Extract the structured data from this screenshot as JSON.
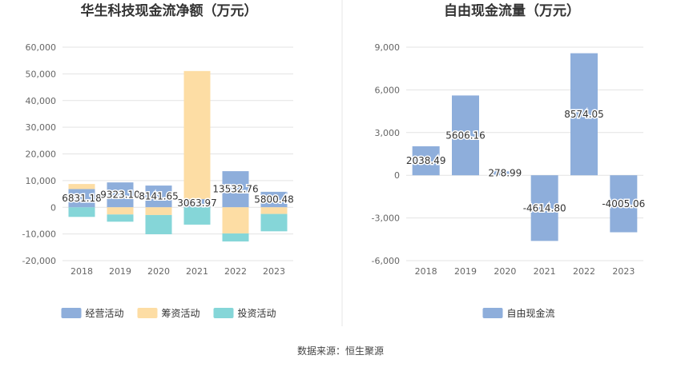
{
  "source_text": "数据来源：恒生聚源",
  "chart_data": [
    {
      "type": "bar",
      "title": "华生科技现金流净额（万元）",
      "categories": [
        "2018",
        "2019",
        "2020",
        "2021",
        "2022",
        "2023"
      ],
      "ylim": [
        -20000,
        60000
      ],
      "yticks": [
        "60,000",
        "50,000",
        "40,000",
        "30,000",
        "20,000",
        "10,000",
        "0",
        "-10,000",
        "-20,000"
      ],
      "stacked": true,
      "series": [
        {
          "name": "经营活动",
          "color": "#8eaedb",
          "values": [
            6831.18,
            9323.1,
            8141.65,
            3063.97,
            13532.76,
            5800.48
          ]
        },
        {
          "name": "筹资活动",
          "color": "#fddda4",
          "values": [
            1900,
            -2700,
            -2900,
            48000,
            -9800,
            -2500
          ]
        },
        {
          "name": "投资活动",
          "color": "#85d6d8",
          "values": [
            -3600,
            -2700,
            -7200,
            -6500,
            -3000,
            -6500
          ]
        }
      ],
      "data_labels": [
        "6831.18",
        "9323.10",
        "8141.65",
        "3063.97",
        "13532.76",
        "5800.48"
      ],
      "legend_position": "bottom"
    },
    {
      "type": "bar",
      "title": "自由现金流量（万元）",
      "categories": [
        "2018",
        "2019",
        "2020",
        "2021",
        "2022",
        "2023"
      ],
      "ylim": [
        -6000,
        9000
      ],
      "yticks": [
        "9,000",
        "6,000",
        "3,000",
        "0",
        "-3,000",
        "-6,000"
      ],
      "series": [
        {
          "name": "自由现金流",
          "color": "#8eaedb",
          "values": [
            2038.49,
            5606.16,
            278.99,
            -4614.8,
            8574.05,
            -4005.06
          ]
        }
      ],
      "data_labels": [
        "2038.49",
        "5606.16",
        "278.99",
        "-4614.80",
        "8574.05",
        "-4005.06"
      ],
      "legend_position": "bottom"
    }
  ]
}
